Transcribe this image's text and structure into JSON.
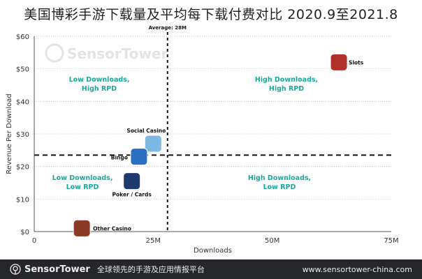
{
  "title": "美国博彩手游下载量及平均每下载付费对比  2020.9至2021.8",
  "watermark": "SensorTower",
  "footer": {
    "brand": "SensorTower",
    "slogan": "全球领先的手游及应用情报平台",
    "url": "www.sensortower-china.com"
  },
  "chart_data": {
    "type": "scatter",
    "xlabel": "Downloads",
    "ylabel": "Revenue Per Download",
    "xlim": [
      0,
      75
    ],
    "ylim": [
      0,
      60
    ],
    "x_ticks": [
      "0",
      "25M",
      "50M",
      "75M"
    ],
    "y_ticks": [
      "$0",
      "$10",
      "$20",
      "$30",
      "$40",
      "$50",
      "$60"
    ],
    "grid": "horizontal dotted",
    "average_downloads": {
      "value": 28,
      "label": "Average: 28M"
    },
    "average_rpd": 23.5,
    "quadrant_labels": [
      "Low Downloads,\nHigh RPD",
      "High Downloads,\nHigh RPD",
      "Low Downloads,\nLow RPD",
      "High Downloads,\nLow RPD"
    ],
    "points": [
      {
        "name": "Slots",
        "x": 64,
        "y": 52,
        "color": "#b0302a"
      },
      {
        "name": "Social Casino",
        "x": 25,
        "y": 27,
        "color": "#7fb8e0"
      },
      {
        "name": "Bingo",
        "x": 22,
        "y": 23,
        "color": "#2a6fc0"
      },
      {
        "name": "Poker / Cards",
        "x": 20.5,
        "y": 15.5,
        "color": "#1d3a6e"
      },
      {
        "name": "Other Casino",
        "x": 10,
        "y": 1,
        "color": "#8a3a26"
      }
    ],
    "quadrant_color": "#1aa89a"
  }
}
